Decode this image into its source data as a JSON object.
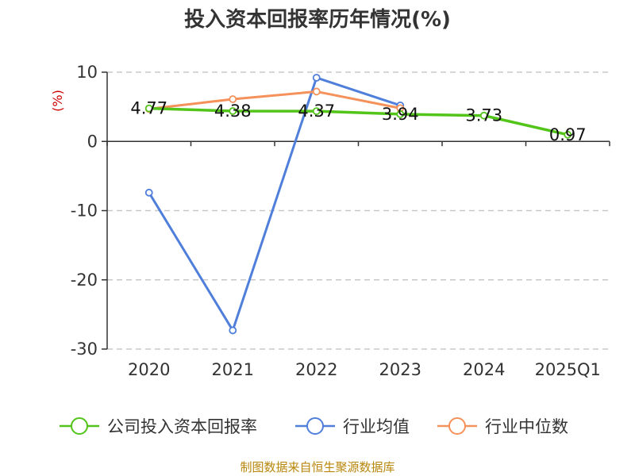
{
  "chart_data": {
    "type": "line",
    "title": "投入资本回报率历年情况(%)",
    "ylabel": "(%)",
    "categories": [
      "2020",
      "2021",
      "2022",
      "2023",
      "2024",
      "2025Q1"
    ],
    "yticks": [
      "10",
      "0",
      "-10",
      "-20",
      "-30"
    ],
    "ylim": [
      -30,
      10
    ],
    "grid": true,
    "legend_position": "bottom",
    "series": [
      {
        "name": "公司投入资本回报率",
        "color": "#52c41a",
        "values": [
          4.77,
          4.38,
          4.37,
          3.94,
          3.73,
          0.97
        ],
        "labels": [
          "4.77",
          "4.38",
          "4.37",
          "3.94",
          "3.73",
          "0.97"
        ]
      },
      {
        "name": "行业均值",
        "color": "#4f7fdb",
        "values": [
          -7.4,
          -27.3,
          9.2,
          5.2,
          null,
          null
        ]
      },
      {
        "name": "行业中位数",
        "color": "#f5915a",
        "values": [
          4.7,
          6.1,
          7.2,
          4.8,
          null,
          null
        ]
      }
    ]
  },
  "source": "制图数据来自恒生聚源数据库"
}
